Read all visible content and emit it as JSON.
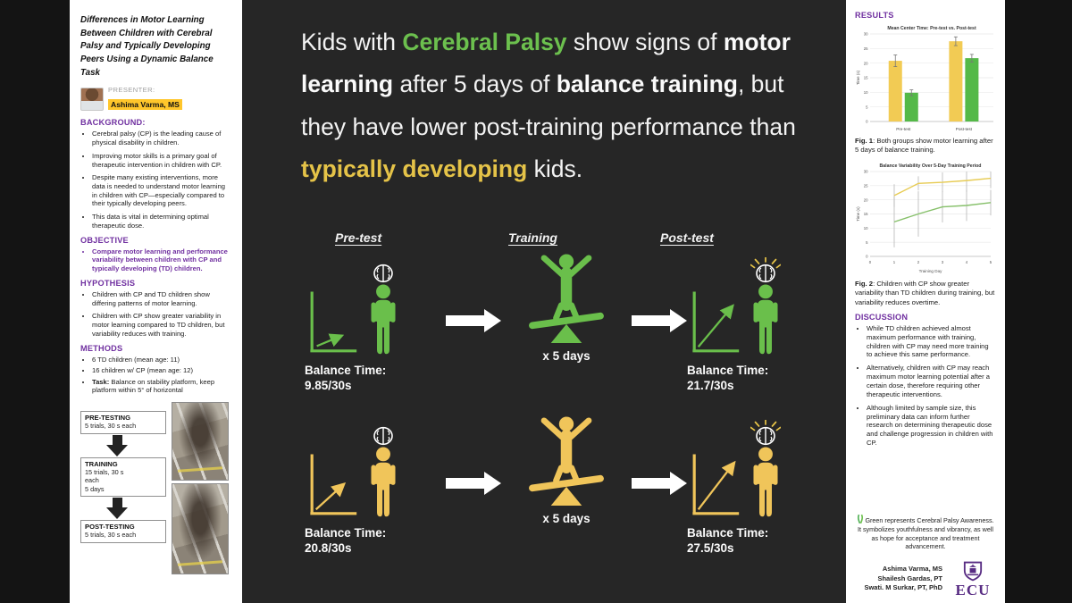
{
  "colors": {
    "cp_green": "#6abf4b",
    "td_yellow": "#f0c55a",
    "accent_purple": "#7030a0",
    "highlight_yellow": "#ffc62b",
    "ecu_purple": "#582c83"
  },
  "left": {
    "title": "Differences in Motor Learning Between Children with Cerebral Palsy and Typically Developing Peers Using a Dynamic Balance Task",
    "presenter_label": "PRESENTER:",
    "presenter_name": "Ashima Varma, MS",
    "background": {
      "heading": "BACKGROUND:",
      "bullets": [
        "Cerebral palsy (CP) is the leading cause of physical disability in children.",
        "Improving motor skills is a primary goal of therapeutic intervention in children with CP.",
        "Despite many existing interventions, more data is needed to understand motor learning in children with CP—especially compared to their typically developing peers.",
        "This data is vital in determining optimal therapeutic dose."
      ]
    },
    "objective": {
      "heading": "OBJECTIVE",
      "bullets": [
        "Compare motor learning and performance variability between children with CP and typically developing (TD) children."
      ]
    },
    "hypothesis": {
      "heading": "HYPOTHESIS",
      "bullets": [
        "Children with CP and TD children show differing patterns of motor learning.",
        "Children with CP show greater variability in motor learning compared to TD children, but variability reduces with training."
      ]
    },
    "methods": {
      "heading": "METHODS",
      "bullets": [
        "6 TD children (mean age: 11)",
        "16 children w/ CP (mean age: 12)",
        {
          "prefix": "Task:",
          "text": " Balance on stability platform, keep platform within 5° of horizontal"
        }
      ]
    },
    "flowchart": [
      {
        "title": "PRE-TESTING",
        "detail": "5 trials, 30 s each"
      },
      {
        "title": "TRAINING",
        "detail": "15 trials, 30 s\neach\n5 days"
      },
      {
        "title": "POST-TESTING",
        "detail": "5 trials, 30 s each"
      }
    ]
  },
  "headline": {
    "segments": [
      {
        "text": "Kids with ",
        "style": "plain"
      },
      {
        "text": "Cerebral Palsy",
        "style": "green"
      },
      {
        "text": " show signs of ",
        "style": "plain"
      },
      {
        "text": "motor learning",
        "style": "bold"
      },
      {
        "text": " after 5 days of ",
        "style": "plain"
      },
      {
        "text": "balance training",
        "style": "bold"
      },
      {
        "text": ", but they have lower post-training performance than ",
        "style": "plain"
      },
      {
        "text": "typically developing",
        "style": "yellow"
      },
      {
        "text": " kids.",
        "style": "plain"
      }
    ]
  },
  "diagram": {
    "col_headers": [
      "Pre-test",
      "Training",
      "Post-test"
    ],
    "rows": [
      {
        "pre_label": "Balance Time:",
        "pre_value": "9.85/30s",
        "training_label": "x 5 days",
        "post_label": "Balance Time:",
        "post_value": "21.7/30s"
      },
      {
        "pre_label": "Balance Time:",
        "pre_value": "20.8/30s",
        "training_label": "x 5 days",
        "post_label": "Balance Time:",
        "post_value": "27.5/30s"
      }
    ]
  },
  "right": {
    "results_heading": "RESULTS",
    "fig1": {
      "label": "Fig. 1",
      "text": ": Both groups show motor learning after 5 days of balance training."
    },
    "fig2": {
      "label": "Fig. 2",
      "text": ": Children with CP show greater variability than TD children during training, but variability reduces overtime."
    },
    "discussion_heading": "DISCUSSION",
    "discussion_bullets": [
      "While TD children achieved almost maximum performance with training, children with CP may need more training to achieve this same performance.",
      "Alternatively, children with CP may reach maximum motor learning potential after a certain dose, therefore requiring other therapeutic interventions.",
      "Although limited by sample size, this preliminary data can inform further research on determining therapeutic dose and challenge progression in children with CP."
    ],
    "ribbon_note": "Green represents Cerebral Palsy Awareness. It symbolizes youthfulness and vibrancy, as well as hope for acceptance and treatment advancement.",
    "credits": [
      "Ashima Varma, MS",
      "Shailesh Gardas, PT",
      "Swati. M Surkar, PT, PhD"
    ],
    "ecu_label": "ECU"
  },
  "icons": {
    "brain": "brain-icon",
    "ribbon": "awareness-ribbon-icon",
    "ecu_shield": "ecu-shield-logo"
  },
  "chart_data": [
    {
      "type": "bar",
      "title": "Mean Center Time: Pre-test vs. Post-test",
      "categories": [
        "Pre-test",
        "Post-test"
      ],
      "series": [
        {
          "name": "TD",
          "color": "#f2cb54",
          "values": [
            20.8,
            27.5
          ],
          "errors": [
            2.0,
            1.5
          ]
        },
        {
          "name": "CP",
          "color": "#54b948",
          "values": [
            9.85,
            21.7
          ],
          "errors": [
            1.0,
            1.3
          ]
        }
      ],
      "xlabel": "",
      "ylabel": "Time (s)",
      "ylim": [
        0,
        30
      ],
      "ytick_step": 5,
      "grid": true,
      "legend": "none"
    },
    {
      "type": "line",
      "title": "Balance Variability Over 5-Day Training Period",
      "x": [
        1,
        2,
        3,
        4,
        5
      ],
      "series": [
        {
          "name": "TD",
          "color": "#e7cb52",
          "values": [
            21.5,
            25.8,
            26.2,
            26.8,
            27.6
          ],
          "errors": [
            4.0,
            2.5,
            3.5,
            4.0,
            3.5
          ]
        },
        {
          "name": "CP",
          "color": "#86c06a",
          "values": [
            12.2,
            15.0,
            17.5,
            18.0,
            19.0
          ],
          "errors": [
            9.0,
            8.0,
            5.5,
            5.5,
            4.5
          ]
        }
      ],
      "xlabel": "Training Day",
      "ylabel": "Time (s)",
      "xlim": [
        0,
        5
      ],
      "ylim": [
        0,
        30
      ],
      "ytick_step": 5,
      "grid": true,
      "legend": "none"
    }
  ]
}
